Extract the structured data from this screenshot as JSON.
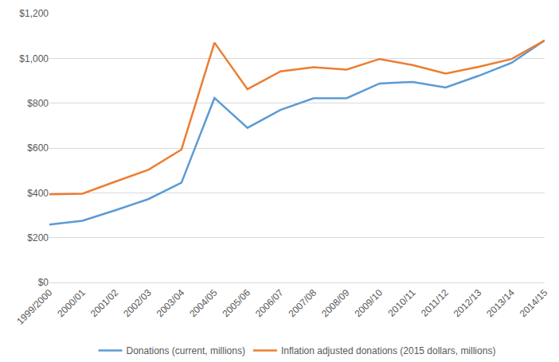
{
  "chart_data": {
    "type": "line",
    "categories": [
      "1999/2000",
      "2000/01",
      "2001/02",
      "2002/03",
      "2003/04",
      "2004/05",
      "2005/06",
      "2006/07",
      "2007/08",
      "2008/09",
      "2009/10",
      "2010/11",
      "2011/12",
      "2012/13",
      "2013/14",
      "2014/15"
    ],
    "series": [
      {
        "name": "Donations (current, millions)",
        "color": "#5b9bd5",
        "values": [
          258,
          275,
          322,
          372,
          445,
          823,
          690,
          770,
          822,
          822,
          888,
          895,
          870,
          922,
          980,
          1080
        ]
      },
      {
        "name": "Inflation adjusted donations (2015 dollars, millions)",
        "color": "#ed7d31",
        "values": [
          393,
          396,
          450,
          503,
          593,
          1070,
          862,
          942,
          960,
          950,
          997,
          970,
          932,
          962,
          997,
          1080
        ]
      }
    ],
    "ylim": [
      0,
      1200
    ],
    "yticks": [
      {
        "value": 0,
        "label": "$0"
      },
      {
        "value": 200,
        "label": "$200"
      },
      {
        "value": 400,
        "label": "$400"
      },
      {
        "value": 600,
        "label": "$600"
      },
      {
        "value": 800,
        "label": "$800"
      },
      {
        "value": 1000,
        "label": "$1,000"
      },
      {
        "value": 1200,
        "label": "$1,200"
      }
    ],
    "grid": true,
    "legend": "bottom"
  }
}
